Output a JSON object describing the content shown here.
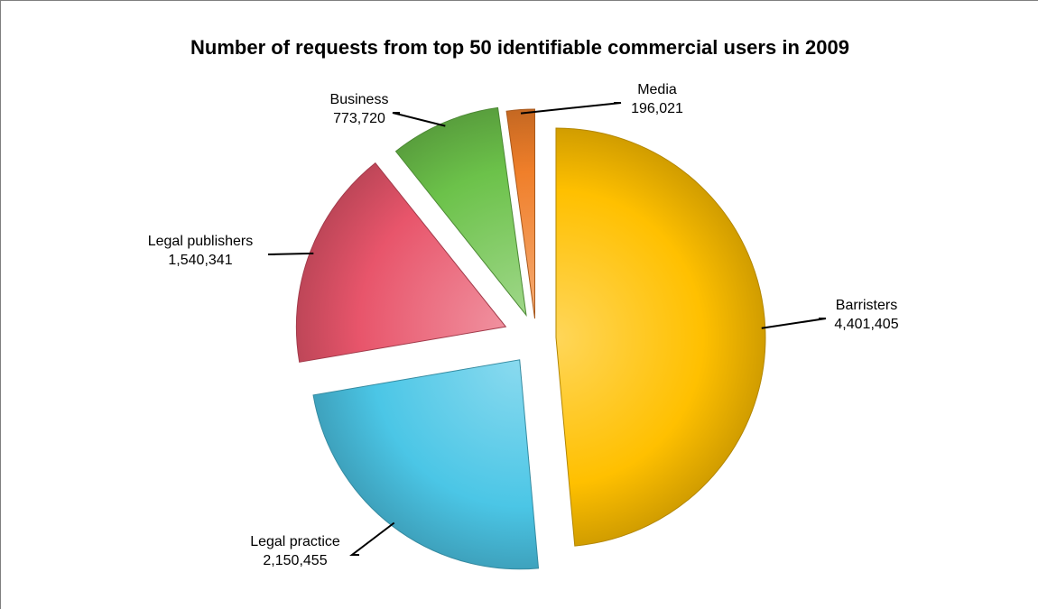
{
  "chart_data": {
    "type": "pie",
    "title": "Number of requests from top 50 identifiable commercial users in 2009",
    "slices": [
      {
        "name": "Barristers",
        "value": 4401405,
        "value_label": "4,401,405",
        "color": "#FFC000"
      },
      {
        "name": "Legal practice",
        "value": 2150455,
        "value_label": "2,150,455",
        "color": "#4BC6E6"
      },
      {
        "name": "Legal publishers",
        "value": 1540341,
        "value_label": "1,540,341",
        "color": "#E8556B"
      },
      {
        "name": "Business",
        "value": 773720,
        "value_label": "773,720",
        "color": "#6CC24A"
      },
      {
        "name": "Media",
        "value": 196021,
        "value_label": "196,021",
        "color": "#F07F2A"
      }
    ],
    "exploded": true,
    "legend": "none",
    "data_labels": "outside-with-leader-lines"
  }
}
